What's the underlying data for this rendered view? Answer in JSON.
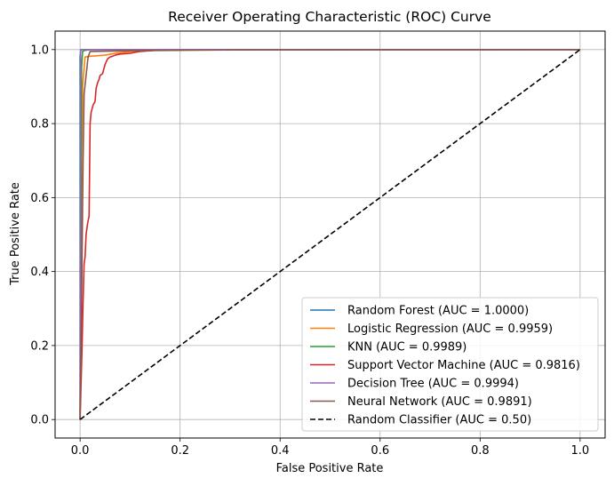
{
  "chart_data": {
    "type": "line",
    "title": "Receiver Operating Characteristic (ROC) Curve",
    "xlabel": "False Positive Rate",
    "ylabel": "True Positive Rate",
    "xlim": [
      -0.05,
      1.05
    ],
    "ylim": [
      -0.05,
      1.05
    ],
    "xticks": [
      0.0,
      0.2,
      0.4,
      0.6,
      0.8,
      1.0
    ],
    "yticks": [
      0.0,
      0.2,
      0.4,
      0.6,
      0.8,
      1.0
    ],
    "xtick_labels": [
      "0.0",
      "0.2",
      "0.4",
      "0.6",
      "0.8",
      "1.0"
    ],
    "ytick_labels": [
      "0.0",
      "0.2",
      "0.4",
      "0.6",
      "0.8",
      "1.0"
    ],
    "grid": true,
    "legend_position": "lower-right",
    "series": [
      {
        "name": "Random Forest (AUC = 1.0000)",
        "color": "#1f77b4",
        "dashed": false,
        "x": [
          0.0,
          0.0,
          0.001,
          0.002,
          1.0
        ],
        "y": [
          0.0,
          0.98,
          0.995,
          1.0,
          1.0
        ]
      },
      {
        "name": "Logistic Regression (AUC = 0.9959)",
        "color": "#ff7f0e",
        "dashed": false,
        "x": [
          0.0,
          0.001,
          0.003,
          0.005,
          0.008,
          0.01,
          0.02,
          0.03,
          0.05,
          0.07,
          0.1,
          0.15,
          0.2,
          0.3,
          1.0
        ],
        "y": [
          0.0,
          0.3,
          0.7,
          0.9,
          0.95,
          0.98,
          0.982,
          0.983,
          0.985,
          0.99,
          0.995,
          0.998,
          0.999,
          1.0,
          1.0
        ]
      },
      {
        "name": "KNN (AUC = 0.9989)",
        "color": "#2ca02c",
        "dashed": false,
        "x": [
          0.0,
          0.003,
          0.005,
          0.008,
          0.01,
          0.02,
          1.0
        ],
        "y": [
          0.0,
          0.95,
          0.995,
          0.997,
          0.998,
          1.0,
          1.0
        ]
      },
      {
        "name": "Support Vector Machine (AUC = 0.9816)",
        "color": "#d62728",
        "dashed": false,
        "x": [
          0.0,
          0.002,
          0.004,
          0.006,
          0.008,
          0.01,
          0.012,
          0.015,
          0.018,
          0.02,
          0.022,
          0.024,
          0.026,
          0.028,
          0.03,
          0.032,
          0.035,
          0.038,
          0.04,
          0.045,
          0.05,
          0.055,
          0.06,
          0.065,
          0.07,
          0.08,
          0.1,
          0.12,
          0.15,
          0.2,
          0.3,
          1.0
        ],
        "y": [
          0.0,
          0.1,
          0.2,
          0.32,
          0.42,
          0.44,
          0.5,
          0.53,
          0.55,
          0.8,
          0.83,
          0.84,
          0.85,
          0.855,
          0.86,
          0.895,
          0.91,
          0.92,
          0.93,
          0.935,
          0.96,
          0.975,
          0.98,
          0.982,
          0.985,
          0.988,
          0.99,
          0.995,
          0.998,
          0.999,
          1.0,
          1.0
        ]
      },
      {
        "name": "Decision Tree (AUC = 0.9994)",
        "color": "#9467bd",
        "dashed": false,
        "x": [
          0.0,
          0.001,
          0.002,
          1.0
        ],
        "y": [
          0.0,
          0.999,
          1.0,
          1.0
        ]
      },
      {
        "name": "Neural Network (AUC = 0.9891)",
        "color": "#8c564b",
        "dashed": false,
        "x": [
          0.0,
          0.002,
          0.004,
          0.006,
          0.008,
          0.012,
          0.016,
          0.02,
          0.1,
          0.3,
          1.0
        ],
        "y": [
          0.0,
          0.2,
          0.45,
          0.7,
          0.88,
          0.93,
          0.98,
          0.995,
          0.997,
          0.999,
          1.0
        ]
      },
      {
        "name": "Random Classifier (AUC = 0.50)",
        "color": "#000000",
        "dashed": true,
        "x": [
          0.0,
          1.0
        ],
        "y": [
          0.0,
          1.0
        ]
      }
    ]
  }
}
